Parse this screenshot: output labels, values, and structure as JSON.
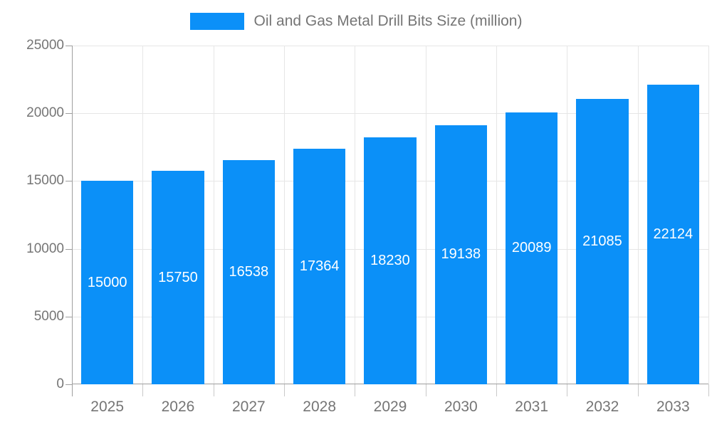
{
  "legend": {
    "items": [
      {
        "label": "Oil and Gas Metal Drill Bits Size (million)",
        "color": "#0b90f8"
      }
    ]
  },
  "chart_data": {
    "type": "bar",
    "title": "Oil and Gas Metal Drill Bits Size (million)",
    "categories": [
      "2025",
      "2026",
      "2027",
      "2028",
      "2029",
      "2030",
      "2031",
      "2032",
      "2033"
    ],
    "values": [
      15000,
      15750,
      16538,
      17364,
      18230,
      19138,
      20089,
      21085,
      22124
    ],
    "value_labels": [
      "15000",
      "15750",
      "16538",
      "17364",
      "18230",
      "19138",
      "20089",
      "21085",
      "22124"
    ],
    "xlabel": "",
    "ylabel": "",
    "ylim": [
      0,
      25000
    ],
    "yticks": [
      0,
      5000,
      10000,
      15000,
      20000,
      25000
    ],
    "grid": true,
    "legend_position": "top",
    "bar_width_fraction": 0.74,
    "colors": {
      "bar": "#0b90f8",
      "grid": "#e6e6e6",
      "axis": "#9e9e9e",
      "tick": "#c9c9c9",
      "text": "#757575",
      "value_label": "#ffffff",
      "background": "#ffffff"
    }
  }
}
